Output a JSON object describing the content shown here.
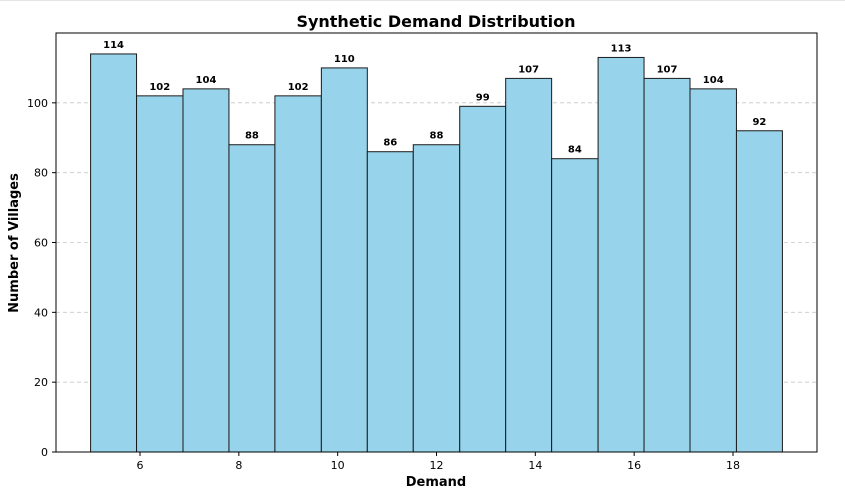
{
  "chart_data": {
    "type": "bar",
    "title": "Synthetic Demand Distribution",
    "xlabel": "Demand",
    "ylabel": "Number of Villages",
    "bin_edges": [
      5.0,
      5.93,
      6.87,
      7.8,
      8.73,
      9.67,
      10.6,
      11.53,
      12.47,
      13.4,
      14.33,
      15.27,
      16.2,
      17.13,
      18.07,
      19.0
    ],
    "values": [
      114,
      102,
      104,
      88,
      102,
      110,
      86,
      88,
      99,
      107,
      84,
      113,
      107,
      104,
      92
    ],
    "xlim": [
      4.3,
      19.7
    ],
    "ylim": [
      0,
      120
    ],
    "x_ticks": [
      "6",
      "8",
      "10",
      "12",
      "14",
      "16",
      "18"
    ],
    "y_ticks": [
      "0",
      "20",
      "40",
      "60",
      "80",
      "100"
    ],
    "grid": "y-dashed",
    "bar_color": "#98d3ec",
    "edge_color": "#1a1a1a"
  }
}
